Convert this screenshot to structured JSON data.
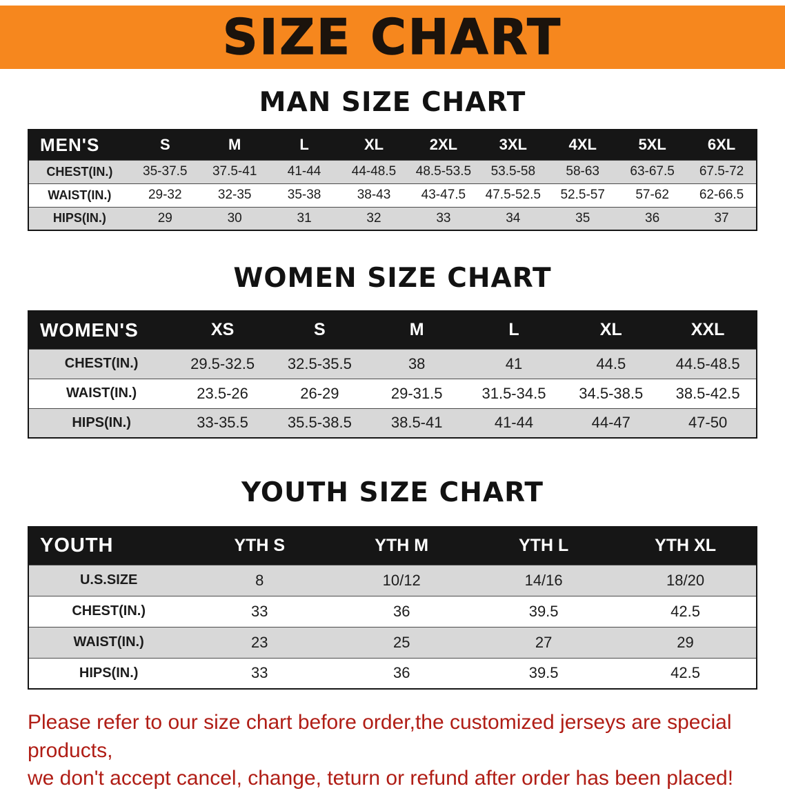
{
  "banner": {
    "title": "SIZE CHART",
    "bg_color": "#f6871e",
    "text_color": "#1b130c"
  },
  "sections": [
    {
      "heading": "MAN SIZE CHART",
      "table": {
        "header": [
          "MEN'S",
          "S",
          "M",
          "L",
          "XL",
          "2XL",
          "3XL",
          "4XL",
          "5XL",
          "6XL"
        ],
        "rows": [
          [
            "CHEST(IN.)",
            "35-37.5",
            "37.5-41",
            "41-44",
            "44-48.5",
            "48.5-53.5",
            "53.5-58",
            "58-63",
            "63-67.5",
            "67.5-72"
          ],
          [
            "WAIST(IN.)",
            "29-32",
            "32-35",
            "35-38",
            "38-43",
            "43-47.5",
            "47.5-52.5",
            "52.5-57",
            "57-62",
            "62-66.5"
          ],
          [
            "HIPS(IN.)",
            "29",
            "30",
            "31",
            "32",
            "33",
            "34",
            "35",
            "36",
            "37"
          ]
        ]
      }
    },
    {
      "heading": "WOMEN SIZE CHART",
      "table": {
        "header": [
          "WOMEN'S",
          "XS",
          "S",
          "M",
          "L",
          "XL",
          "XXL"
        ],
        "rows": [
          [
            "CHEST(IN.)",
            "29.5-32.5",
            "32.5-35.5",
            "38",
            "41",
            "44.5",
            "44.5-48.5"
          ],
          [
            "WAIST(IN.)",
            "23.5-26",
            "26-29",
            "29-31.5",
            "31.5-34.5",
            "34.5-38.5",
            "38.5-42.5"
          ],
          [
            "HIPS(IN.)",
            "33-35.5",
            "35.5-38.5",
            "38.5-41",
            "41-44",
            "44-47",
            "47-50"
          ]
        ]
      }
    },
    {
      "heading": "YOUTH SIZE CHART",
      "table": {
        "header": [
          "YOUTH",
          "YTH S",
          "YTH M",
          "YTH L",
          "YTH XL"
        ],
        "rows": [
          [
            "U.S.SIZE",
            "8",
            "10/12",
            "14/16",
            "18/20"
          ],
          [
            "CHEST(IN.)",
            "33",
            "36",
            "39.5",
            "42.5"
          ],
          [
            "WAIST(IN.)",
            "23",
            "25",
            "27",
            "29"
          ],
          [
            "HIPS(IN.)",
            "33",
            "36",
            "39.5",
            "42.5"
          ]
        ]
      }
    }
  ],
  "disclaimer": {
    "line1": "Please refer to our size chart before order,the customized jerseys are special products,",
    "line2": "we don't accept cancel, change, teturn or refund after order has been placed!",
    "color": "#b01d15"
  }
}
